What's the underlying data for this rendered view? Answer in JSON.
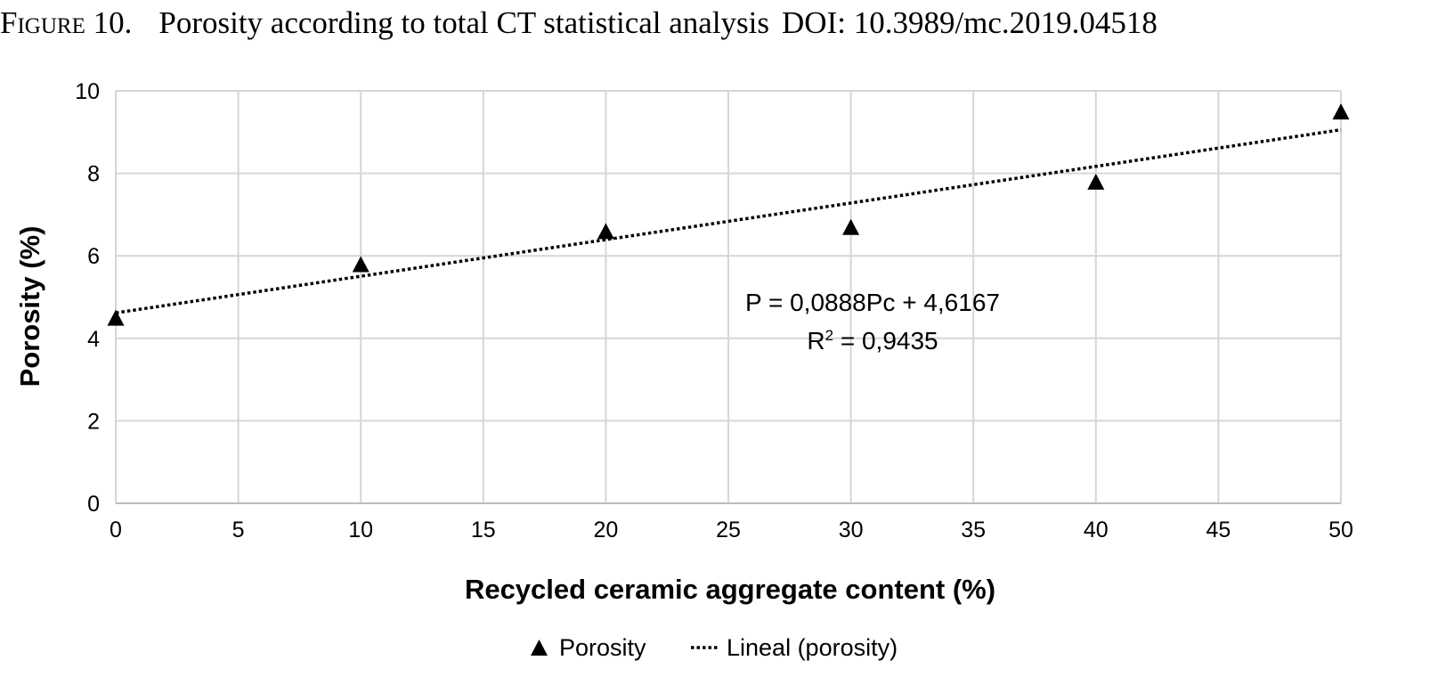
{
  "caption": {
    "label": "Figure 10.",
    "title": "Porosity according to total CT statistical analysis",
    "doi": "DOI: 10.3989/mc.2019.04518"
  },
  "chart_data": {
    "type": "scatter",
    "xlabel": "Recycled ceramic aggregate content (%)",
    "ylabel": "Porosity (%)",
    "xlim": [
      0,
      50
    ],
    "ylim": [
      0,
      10
    ],
    "x_ticks": [
      0,
      5,
      10,
      15,
      20,
      25,
      30,
      35,
      40,
      45,
      50
    ],
    "y_ticks": [
      0,
      2,
      4,
      6,
      8,
      10
    ],
    "grid": true,
    "legend_position": "bottom",
    "series": [
      {
        "name": "Porosity",
        "marker": "triangle",
        "color": "#000000",
        "x": [
          0,
          10,
          20,
          30,
          40,
          50
        ],
        "y": [
          4.5,
          5.8,
          6.6,
          6.7,
          7.8,
          9.5
        ]
      }
    ],
    "trendline": {
      "name": "Lineal (porosity)",
      "style": "dotted",
      "color": "#000000",
      "slope": 0.0888,
      "intercept": 4.6167,
      "equation": "P = 0,0888Pc + 4,6167",
      "r_squared_label": "R",
      "r_squared_sup": "2",
      "r_squared_value": " = 0,9435"
    }
  }
}
